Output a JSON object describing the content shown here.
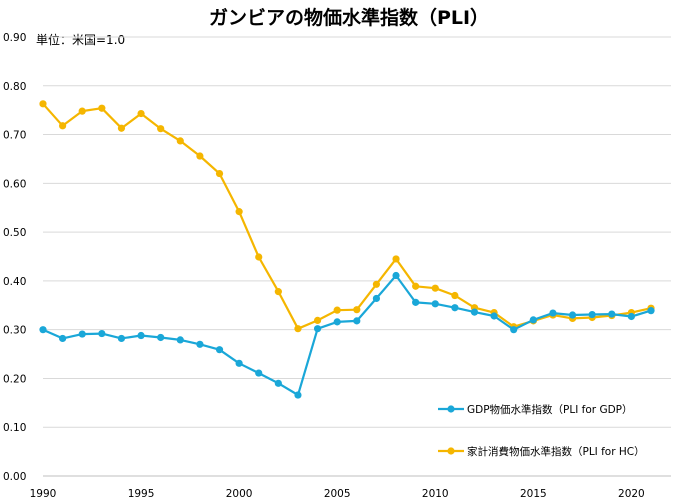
{
  "chart_data": {
    "type": "line",
    "title": "ガンビアの物価水準指数（PLI）",
    "unit_note": "単位：米国=1.0",
    "xlabel": "",
    "ylabel": "",
    "xlim": [
      1990,
      2021
    ],
    "ylim": [
      0.0,
      0.9
    ],
    "yticks": [
      "0.00",
      "0.10",
      "0.20",
      "0.30",
      "0.40",
      "0.50",
      "0.60",
      "0.70",
      "0.80",
      "0.90"
    ],
    "xticks": [
      "1990",
      "1995",
      "2000",
      "2005",
      "2010",
      "2015",
      "2020"
    ],
    "x": [
      1990,
      1991,
      1992,
      1993,
      1994,
      1995,
      1996,
      1997,
      1998,
      1999,
      2000,
      2001,
      2002,
      2003,
      2004,
      2005,
      2006,
      2007,
      2008,
      2009,
      2010,
      2011,
      2012,
      2013,
      2014,
      2015,
      2016,
      2017,
      2018,
      2019,
      2020,
      2021
    ],
    "series": [
      {
        "name": "GDP物価水準指数（PLI for GDP）",
        "color": "#1aa7d8",
        "values": [
          0.3,
          0.282,
          0.291,
          0.292,
          0.282,
          0.288,
          0.284,
          0.279,
          0.27,
          0.259,
          0.231,
          0.211,
          0.19,
          0.166,
          0.302,
          0.316,
          0.318,
          0.364,
          0.411,
          0.356,
          0.353,
          0.345,
          0.336,
          0.328,
          0.3,
          0.32,
          0.334,
          0.33,
          0.331,
          0.332,
          0.327,
          0.339
        ]
      },
      {
        "name": "家計消費物価水準指数（PLI for HC）",
        "color": "#f5b600",
        "values": [
          0.763,
          0.718,
          0.748,
          0.754,
          0.713,
          0.743,
          0.712,
          0.687,
          0.656,
          0.62,
          0.542,
          0.449,
          0.378,
          0.302,
          0.319,
          0.34,
          0.341,
          0.393,
          0.445,
          0.389,
          0.385,
          0.37,
          0.345,
          0.335,
          0.306,
          0.318,
          0.33,
          0.323,
          0.325,
          0.329,
          0.335,
          0.344
        ]
      }
    ],
    "legend_position": "bottom-right",
    "grid": "horizontal"
  }
}
